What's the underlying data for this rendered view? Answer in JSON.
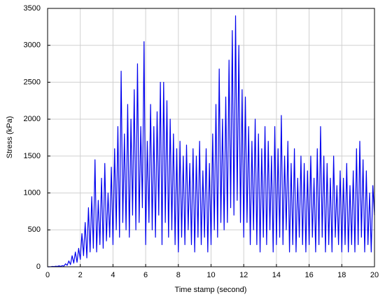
{
  "chart_data": {
    "type": "line",
    "x_label": "Time stamp (second)",
    "y_label": "Stress (kPa)",
    "color": "#0000ee",
    "grid": true,
    "xlim": [
      0,
      20
    ],
    "xticks": [
      0,
      2,
      4,
      6,
      8,
      10,
      12,
      14,
      16,
      18,
      20
    ],
    "ylim": [
      0,
      3500
    ],
    "yticks": [
      0,
      500,
      1000,
      1500,
      2000,
      2500,
      3000,
      3500
    ],
    "x": [
      0,
      0.1,
      0.2,
      0.3,
      0.4,
      0.5,
      0.6,
      0.7,
      0.8,
      0.9,
      1,
      1.1,
      1.2,
      1.3,
      1.4,
      1.5,
      1.6,
      1.7,
      1.8,
      1.9,
      2,
      2.1,
      2.2,
      2.3,
      2.4,
      2.5,
      2.6,
      2.7,
      2.8,
      2.9,
      3,
      3.1,
      3.2,
      3.3,
      3.4,
      3.5,
      3.6,
      3.7,
      3.8,
      3.9,
      4,
      4.1,
      4.2,
      4.3,
      4.4,
      4.5,
      4.6,
      4.7,
      4.8,
      4.9,
      5,
      5.1,
      5.2,
      5.3,
      5.4,
      5.5,
      5.6,
      5.7,
      5.8,
      5.9,
      6,
      6.1,
      6.2,
      6.3,
      6.4,
      6.5,
      6.6,
      6.7,
      6.8,
      6.9,
      7,
      7.1,
      7.2,
      7.3,
      7.4,
      7.5,
      7.6,
      7.7,
      7.8,
      7.9,
      8,
      8.1,
      8.2,
      8.3,
      8.4,
      8.5,
      8.6,
      8.7,
      8.8,
      8.9,
      9,
      9.1,
      9.2,
      9.3,
      9.4,
      9.5,
      9.6,
      9.7,
      9.8,
      9.9,
      10,
      10.1,
      10.2,
      10.3,
      10.4,
      10.5,
      10.6,
      10.7,
      10.8,
      10.9,
      11,
      11.1,
      11.2,
      11.3,
      11.4,
      11.5,
      11.6,
      11.7,
      11.8,
      11.9,
      12,
      12.1,
      12.2,
      12.3,
      12.4,
      12.5,
      12.6,
      12.7,
      12.8,
      12.9,
      13,
      13.1,
      13.2,
      13.3,
      13.4,
      13.5,
      13.6,
      13.7,
      13.8,
      13.9,
      14,
      14.1,
      14.2,
      14.3,
      14.4,
      14.5,
      14.6,
      14.7,
      14.8,
      14.9,
      15,
      15.1,
      15.2,
      15.3,
      15.4,
      15.5,
      15.6,
      15.7,
      15.8,
      15.9,
      16,
      16.1,
      16.2,
      16.3,
      16.4,
      16.5,
      16.6,
      16.7,
      16.8,
      16.9,
      17,
      17.1,
      17.2,
      17.3,
      17.4,
      17.5,
      17.6,
      17.7,
      17.8,
      17.9,
      18,
      18.1,
      18.2,
      18.3,
      18.4,
      18.5,
      18.6,
      18.7,
      18.8,
      18.9,
      19,
      19.1,
      19.2,
      19.3,
      19.4,
      19.5,
      19.6,
      19.7,
      19.8,
      19.9,
      20
    ],
    "values": [
      0,
      0,
      2,
      5,
      3,
      8,
      5,
      12,
      6,
      15,
      10,
      40,
      20,
      80,
      30,
      150,
      50,
      200,
      60,
      250,
      100,
      450,
      150,
      600,
      120,
      800,
      200,
      950,
      250,
      1450,
      200,
      900,
      300,
      1200,
      250,
      1400,
      350,
      1000,
      400,
      1350,
      300,
      1600,
      500,
      1900,
      400,
      2650,
      600,
      1800,
      500,
      2200,
      400,
      2000,
      700,
      2400,
      500,
      2750,
      600,
      1900,
      800,
      3050,
      300,
      1700,
      600,
      2200,
      500,
      1900,
      400,
      2100,
      700,
      2500,
      300,
      2500,
      600,
      2250,
      400,
      2000,
      500,
      1800,
      300,
      1600,
      200,
      1700,
      400,
      1500,
      300,
      1650,
      500,
      1400,
      300,
      1600,
      200,
      1500,
      400,
      1700,
      300,
      1300,
      400,
      1600,
      200,
      1400,
      300,
      1800,
      500,
      2200,
      400,
      2680,
      600,
      2000,
      500,
      2300,
      600,
      2800,
      800,
      3200,
      700,
      3400,
      900,
      3000,
      600,
      2400,
      400,
      2300,
      600,
      1900,
      300,
      1700,
      500,
      2000,
      300,
      1800,
      200,
      1600,
      400,
      1900,
      300,
      1700,
      500,
      1500,
      200,
      1900,
      300,
      1600,
      400,
      2050,
      300,
      1500,
      500,
      1700,
      200,
      1400,
      300,
      1600,
      200,
      1200,
      400,
      1500,
      300,
      1400,
      200,
      1300,
      300,
      1500,
      400,
      1200,
      200,
      1600,
      300,
      1900,
      400,
      1500,
      200,
      1400,
      300,
      1200,
      200,
      1500,
      400,
      1100,
      300,
      1300,
      200,
      1200,
      300,
      1400,
      200,
      1100,
      300,
      1300,
      200,
      1600,
      300,
      1700,
      400,
      1450,
      200,
      1300,
      300,
      1000,
      200,
      1100,
      700
    ]
  }
}
